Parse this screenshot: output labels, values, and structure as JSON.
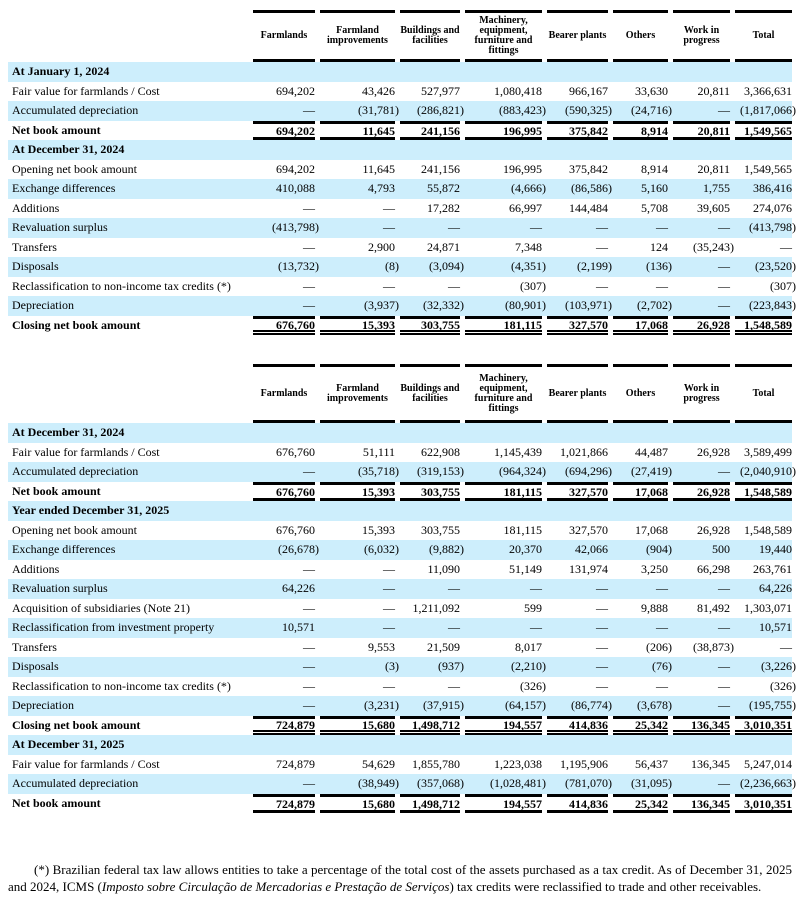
{
  "columns": [
    "Farmlands",
    "Farmland improvements",
    "Buildings and facilities",
    "Machinery, equipment, furniture and fittings",
    "Bearer plants",
    "Others",
    "Work in progress",
    "Total"
  ],
  "table1": [
    {
      "type": "section",
      "label": "At January 1, 2024",
      "values": []
    },
    {
      "type": "row",
      "label": "Fair value for farmlands / Cost",
      "values": [
        "694,202",
        "43,426",
        "527,977",
        "1,080,418",
        "966,167",
        "33,630",
        "20,811",
        "3,366,631"
      ]
    },
    {
      "type": "row",
      "label": "Accumulated depreciation",
      "values": [
        "—",
        "(31,781)",
        "(286,821)",
        "(883,423)",
        "(590,325)",
        "(24,716)",
        "—",
        "(1,817,066)"
      ]
    },
    {
      "type": "total",
      "label": "Net book amount",
      "values": [
        "694,202",
        "11,645",
        "241,156",
        "196,995",
        "375,842",
        "8,914",
        "20,811",
        "1,549,565"
      ]
    },
    {
      "type": "section",
      "label": "At December 31, 2024",
      "values": []
    },
    {
      "type": "row",
      "label": "Opening net book amount",
      "values": [
        "694,202",
        "11,645",
        "241,156",
        "196,995",
        "375,842",
        "8,914",
        "20,811",
        "1,549,565"
      ]
    },
    {
      "type": "row",
      "label": "Exchange differences",
      "values": [
        "410,088",
        "4,793",
        "55,872",
        "(4,666)",
        "(86,586)",
        "5,160",
        "1,755",
        "386,416"
      ]
    },
    {
      "type": "row",
      "label": "Additions",
      "values": [
        "—",
        "—",
        "17,282",
        "66,997",
        "144,484",
        "5,708",
        "39,605",
        "274,076"
      ]
    },
    {
      "type": "row",
      "label": "Revaluation surplus",
      "values": [
        "(413,798)",
        "—",
        "—",
        "—",
        "—",
        "—",
        "—",
        "(413,798)"
      ]
    },
    {
      "type": "row",
      "label": "Transfers",
      "values": [
        "—",
        "2,900",
        "24,871",
        "7,348",
        "—",
        "124",
        "(35,243)",
        "—"
      ]
    },
    {
      "type": "row",
      "label": "Disposals",
      "values": [
        "(13,732)",
        "(8)",
        "(3,094)",
        "(4,351)",
        "(2,199)",
        "(136)",
        "—",
        "(23,520)"
      ]
    },
    {
      "type": "row",
      "label": "Reclassification to non-income tax credits (*)",
      "values": [
        "—",
        "—",
        "—",
        "(307)",
        "—",
        "—",
        "—",
        "(307)"
      ]
    },
    {
      "type": "row",
      "label": "Depreciation",
      "values": [
        "—",
        "(3,937)",
        "(32,332)",
        "(80,901)",
        "(103,971)",
        "(2,702)",
        "—",
        "(223,843)"
      ]
    },
    {
      "type": "closing",
      "label": "Closing net book amount",
      "values": [
        "676,760",
        "15,393",
        "303,755",
        "181,115",
        "327,570",
        "17,068",
        "26,928",
        "1,548,589"
      ]
    }
  ],
  "table2": [
    {
      "type": "section",
      "label": "At December 31, 2024",
      "values": []
    },
    {
      "type": "row",
      "label": "Fair value for farmlands / Cost",
      "values": [
        "676,760",
        "51,111",
        "622,908",
        "1,145,439",
        "1,021,866",
        "44,487",
        "26,928",
        "3,589,499"
      ]
    },
    {
      "type": "row",
      "label": "Accumulated depreciation",
      "values": [
        "—",
        "(35,718)",
        "(319,153)",
        "(964,324)",
        "(694,296)",
        "(27,419)",
        "—",
        "(2,040,910)"
      ]
    },
    {
      "type": "total",
      "label": "Net book amount",
      "values": [
        "676,760",
        "15,393",
        "303,755",
        "181,115",
        "327,570",
        "17,068",
        "26,928",
        "1,548,589"
      ]
    },
    {
      "type": "section",
      "label": "Year ended December 31, 2025",
      "values": []
    },
    {
      "type": "row",
      "label": "Opening net book amount",
      "values": [
        "676,760",
        "15,393",
        "303,755",
        "181,115",
        "327,570",
        "17,068",
        "26,928",
        "1,548,589"
      ]
    },
    {
      "type": "row",
      "label": "Exchange differences",
      "values": [
        "(26,678)",
        "(6,032)",
        "(9,882)",
        "20,370",
        "42,066",
        "(904)",
        "500",
        "19,440"
      ]
    },
    {
      "type": "row",
      "label": "Additions",
      "values": [
        "—",
        "—",
        "11,090",
        "51,149",
        "131,974",
        "3,250",
        "66,298",
        "263,761"
      ]
    },
    {
      "type": "row",
      "label": "Revaluation surplus",
      "values": [
        "64,226",
        "—",
        "—",
        "—",
        "—",
        "—",
        "—",
        "64,226"
      ]
    },
    {
      "type": "row",
      "label": "Acquisition of subsidiaries (Note 21)",
      "values": [
        "—",
        "—",
        "1,211,092",
        "599",
        "—",
        "9,888",
        "81,492",
        "1,303,071"
      ]
    },
    {
      "type": "row",
      "label": "Reclassification from investment property",
      "values": [
        "10,571",
        "—",
        "—",
        "—",
        "—",
        "—",
        "—",
        "10,571"
      ]
    },
    {
      "type": "row",
      "label": "Transfers",
      "values": [
        "—",
        "9,553",
        "21,509",
        "8,017",
        "—",
        "(206)",
        "(38,873)",
        "—"
      ]
    },
    {
      "type": "row",
      "label": "Disposals",
      "values": [
        "—",
        "(3)",
        "(937)",
        "(2,210)",
        "—",
        "(76)",
        "—",
        "(3,226)"
      ]
    },
    {
      "type": "row",
      "label": "Reclassification to non-income tax credits (*)",
      "values": [
        "—",
        "—",
        "—",
        "(326)",
        "—",
        "—",
        "—",
        "(326)"
      ]
    },
    {
      "type": "row",
      "label": "Depreciation",
      "values": [
        "—",
        "(3,231)",
        "(37,915)",
        "(64,157)",
        "(86,774)",
        "(3,678)",
        "—",
        "(195,755)"
      ]
    },
    {
      "type": "closing",
      "label": "Closing net book amount",
      "values": [
        "724,879",
        "15,680",
        "1,498,712",
        "194,557",
        "414,836",
        "25,342",
        "136,345",
        "3,010,351"
      ]
    },
    {
      "type": "section",
      "label": "At December 31, 2025",
      "values": []
    },
    {
      "type": "row",
      "label": "Fair value for farmlands / Cost",
      "values": [
        "724,879",
        "54,629",
        "1,855,780",
        "1,223,038",
        "1,195,906",
        "56,437",
        "136,345",
        "5,247,014"
      ]
    },
    {
      "type": "row",
      "label": "Accumulated depreciation",
      "values": [
        "—",
        "(38,949)",
        "(357,068)",
        "(1,028,481)",
        "(781,070)",
        "(31,095)",
        "—",
        "(2,236,663)"
      ]
    },
    {
      "type": "total",
      "label": "Net book amount",
      "values": [
        "724,879",
        "15,680",
        "1,498,712",
        "194,557",
        "414,836",
        "25,342",
        "136,345",
        "3,010,351"
      ]
    }
  ],
  "footnote": {
    "part1": "(*) Brazilian federal tax law allows entities to take a percentage of the total cost of the assets purchased as a tax credit. As of December 31, 2025 and 2024, ICMS (",
    "italic": "Imposto sobre Circulação de Mercadorias e Prestação de Serviços",
    "part2": ") tax credits were reclassified to trade and other receivables."
  },
  "colors": {
    "shade": "#cdeefc"
  }
}
